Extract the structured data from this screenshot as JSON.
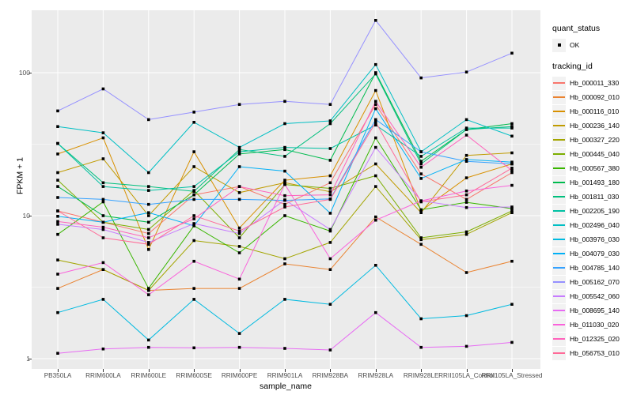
{
  "figure": {
    "background": "#FFFFFF",
    "panel_background": "#EBEBEB",
    "gridline_color": "#FFFFFF",
    "tick_text_color": "#4D4D4D",
    "axis_title_color": "#000000",
    "point_color": "#000000"
  },
  "legend": {
    "quant_status": {
      "title": "quant_status",
      "items": [
        "OK"
      ]
    },
    "tracking_id": {
      "title": "tracking_id"
    },
    "key_background": "#F2F2F2"
  },
  "chart_data": {
    "type": "line",
    "title": "",
    "xlabel": "sample_name",
    "ylabel": "FPKM + 1",
    "y_scale": "log10",
    "y_ticks": [
      1,
      10,
      100
    ],
    "y_tick_labels": [
      "1",
      "10",
      "100"
    ],
    "y_minor_ticks": [
      3.1623,
      31.623
    ],
    "ylim": [
      0.85,
      290
    ],
    "grid": "white major and minor on grey panel",
    "legend_position": "right",
    "point_marker": "small black square (quant_status = OK)",
    "categories": [
      "PB350LA",
      "RRIM600LA",
      "RRIM600LE",
      "RRIM600SE",
      "RRIM600PE",
      "RRIM901LA",
      "RRIM928BA",
      "RRIM928LA",
      "RRIM928LE",
      "RRII105LA_Control",
      "RRII105LA_Stressed"
    ],
    "series": [
      {
        "name": "Hb_000011_330",
        "color": "#F8766D",
        "values": [
          10.8,
          9.0,
          7.5,
          14,
          16,
          12,
          17,
          60,
          19.6,
          13,
          20
        ]
      },
      {
        "name": "Hb_000092_010",
        "color": "#EA8331",
        "values": [
          3.1,
          4.2,
          3.0,
          3.1,
          3.1,
          4.6,
          4.2,
          9.8,
          6.3,
          4.0,
          4.8
        ]
      },
      {
        "name": "Hb_000116_010",
        "color": "#D89000",
        "values": [
          27,
          35,
          5.8,
          28,
          8.2,
          17.7,
          19,
          75,
          10.8,
          18.4,
          23
        ]
      },
      {
        "name": "Hb_000236_140",
        "color": "#C09B00",
        "values": [
          20,
          25,
          10,
          22,
          14.5,
          17,
          14.7,
          23,
          10.5,
          26.4,
          27.5
        ]
      },
      {
        "name": "Hb_000327_220",
        "color": "#A3A500",
        "values": [
          4.9,
          4.2,
          3.0,
          6.7,
          6.1,
          5.0,
          6.5,
          16,
          6.8,
          7.4,
          10.5
        ]
      },
      {
        "name": "Hb_000445_040",
        "color": "#7CAE00",
        "values": [
          17.7,
          9.0,
          8.0,
          15,
          7.0,
          16.5,
          15.5,
          19,
          7.0,
          7.7,
          10.8
        ]
      },
      {
        "name": "Hb_000567_380",
        "color": "#39B600",
        "values": [
          7.4,
          12.5,
          3.1,
          8.5,
          5.5,
          10,
          7.8,
          35,
          11,
          12.4,
          11.2
        ]
      },
      {
        "name": "Hb_001493_180",
        "color": "#00BB4E",
        "values": [
          16,
          10,
          9.0,
          14,
          27,
          29,
          24.4,
          100,
          24,
          40,
          44
        ]
      },
      {
        "name": "Hb_001811_030",
        "color": "#00BF7D",
        "values": [
          32,
          17,
          16,
          14.8,
          29,
          26,
          44,
          98,
          23,
          40,
          42
        ]
      },
      {
        "name": "Hb_002205_190",
        "color": "#00C1A3",
        "values": [
          32,
          16,
          15,
          16,
          28,
          30,
          29.5,
          43,
          26,
          41,
          41
        ]
      },
      {
        "name": "Hb_002496_040",
        "color": "#00BFC4",
        "values": [
          42,
          38,
          20,
          45,
          30,
          44,
          46,
          114,
          28,
          47,
          36
        ]
      },
      {
        "name": "Hb_003976_030",
        "color": "#00BAE0",
        "values": [
          2.1,
          2.6,
          1.35,
          2.6,
          1.5,
          2.6,
          2.4,
          4.5,
          1.9,
          2.0,
          2.4
        ]
      },
      {
        "name": "Hb_004079_030",
        "color": "#00B0F6",
        "values": [
          9.9,
          9.0,
          10.5,
          8.5,
          22,
          20.5,
          10.4,
          56,
          18.2,
          24.7,
          23.7
        ]
      },
      {
        "name": "Hb_004785_140",
        "color": "#35A2FF",
        "values": [
          13.4,
          13,
          12,
          13,
          13,
          12.8,
          13.1,
          47,
          28,
          24,
          23
        ]
      },
      {
        "name": "Hb_005162_070",
        "color": "#9590FF",
        "values": [
          54,
          77,
          47,
          53,
          60,
          63,
          60,
          232,
          92,
          101,
          137
        ]
      },
      {
        "name": "Hb_005542_060",
        "color": "#C77CFF",
        "values": [
          8.7,
          8.0,
          6.5,
          8.8,
          7.5,
          12.9,
          8.0,
          30,
          12.7,
          11.4,
          11.5
        ]
      },
      {
        "name": "Hb_008695_140",
        "color": "#E76BF3",
        "values": [
          1.09,
          1.17,
          1.2,
          1.19,
          1.2,
          1.18,
          1.15,
          2.1,
          1.2,
          1.22,
          1.3
        ]
      },
      {
        "name": "Hb_011030_020",
        "color": "#FA62DB",
        "values": [
          3.9,
          4.7,
          2.8,
          4.8,
          3.6,
          16.6,
          5.0,
          9.3,
          12.7,
          14.9,
          16.3
        ]
      },
      {
        "name": "Hb_012325_020",
        "color": "#FF62BC",
        "values": [
          9.1,
          8.3,
          7.0,
          9.5,
          16,
          13.8,
          14,
          63,
          21.8,
          36.6,
          20.7
        ]
      },
      {
        "name": "Hb_056753_010",
        "color": "#FF6A98",
        "values": [
          10.8,
          7.0,
          6.3,
          10,
          7.8,
          11.5,
          13,
          45,
          12.5,
          14,
          21.5
        ]
      }
    ]
  }
}
